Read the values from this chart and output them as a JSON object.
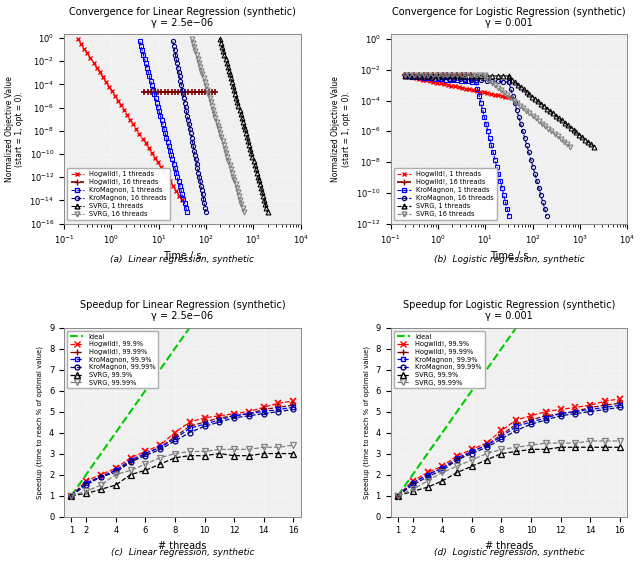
{
  "fig_width": 6.4,
  "fig_height": 5.74,
  "title_a": "Convergence for Linear Regression (synthetic)",
  "subtitle_a": "γ = 2.5e−06",
  "title_b": "Convergence for Logistic Regression (synthetic)",
  "subtitle_b": "γ = 0.001",
  "title_c": "Speedup for Linear Regression (synthetic)",
  "subtitle_c": "γ = 2.5e−06",
  "title_d": "Speedup for Logistic Regression (synthetic)",
  "subtitle_d": "γ = 0.001",
  "caption_a": "(a)  Linear regression, synthetic",
  "caption_b": "(b)  Logistic regression, synthetic",
  "caption_c": "(c)  Linear regression, synthetic",
  "caption_d": "(d)  Logistic regression, synthetic",
  "colors": {
    "hogwild_1": "#ff0000",
    "hogwild_16": "#800000",
    "kromagnon_1": "#0000ff",
    "kromagnon_16": "#000080",
    "svrg_1": "#000000",
    "svrg_16": "#808080",
    "ideal": "#00cc00"
  },
  "background": "#f0f0f0"
}
